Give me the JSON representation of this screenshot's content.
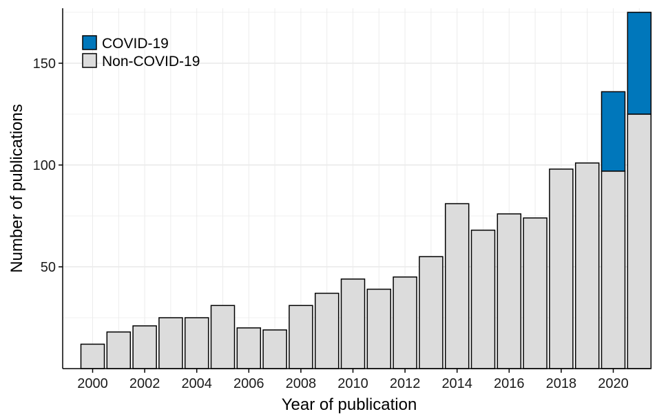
{
  "chart_data": {
    "type": "bar",
    "stacked": true,
    "categories": [
      "2000",
      "2001",
      "2002",
      "2003",
      "2004",
      "2005",
      "2006",
      "2007",
      "2008",
      "2009",
      "2010",
      "2011",
      "2012",
      "2013",
      "2014",
      "2015",
      "2016",
      "2017",
      "2018",
      "2019",
      "2020",
      "2021"
    ],
    "x_tick_labels": [
      "2000",
      "2002",
      "2004",
      "2006",
      "2008",
      "2010",
      "2012",
      "2014",
      "2016",
      "2018",
      "2020"
    ],
    "series": [
      {
        "name": "Non-COVID-19",
        "color": "#dcdcdc",
        "values": [
          12,
          18,
          21,
          25,
          25,
          31,
          20,
          19,
          31,
          37,
          44,
          39,
          45,
          55,
          81,
          68,
          76,
          74,
          98,
          101,
          97,
          125
        ]
      },
      {
        "name": "COVID-19",
        "color": "#0077bb",
        "values": [
          0,
          0,
          0,
          0,
          0,
          0,
          0,
          0,
          0,
          0,
          0,
          0,
          0,
          0,
          0,
          0,
          0,
          0,
          0,
          0,
          39,
          50
        ]
      }
    ],
    "title": "",
    "xlabel": "Year of publication",
    "ylabel": "Number of publications",
    "ylim": [
      0,
      177
    ],
    "y_ticks": [
      50,
      100,
      150
    ],
    "grid": true,
    "legend": {
      "placement": "top-left",
      "entries": [
        "COVID-19",
        "Non-COVID-19"
      ]
    }
  }
}
